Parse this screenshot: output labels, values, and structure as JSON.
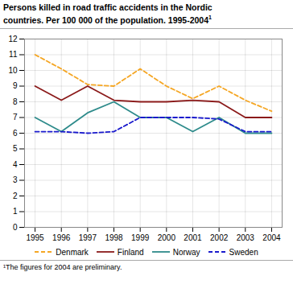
{
  "chart_data": {
    "type": "line",
    "title": "Persons killed in road traffic accidents in the Nordic\ncountries. Per 100 000 of the population.  1995-2004",
    "superscript": "1",
    "caption": "¹The figures for 2004 are preliminary.",
    "x": [
      1995,
      1996,
      1997,
      1998,
      1999,
      2000,
      2001,
      2002,
      2003,
      2004
    ],
    "series": [
      {
        "name": "Denmark",
        "color": "#F5A623",
        "line_style": "dashed",
        "values": [
          11.0,
          10.1,
          9.1,
          9.0,
          10.1,
          9.0,
          8.2,
          9.0,
          8.1,
          7.4
        ]
      },
      {
        "name": "Finland",
        "color": "#8B1A1A",
        "line_style": "solid",
        "values": [
          9.0,
          8.1,
          9.0,
          8.1,
          8.0,
          8.0,
          8.1,
          8.0,
          7.0,
          7.0
        ]
      },
      {
        "name": "Norway",
        "color": "#2E8B8B",
        "line_style": "solid",
        "values": [
          7.0,
          6.1,
          7.3,
          8.0,
          7.0,
          7.0,
          6.1,
          7.0,
          6.0,
          6.0
        ]
      },
      {
        "name": "Sweden",
        "color": "#1A1ACD",
        "line_style": "dashed",
        "values": [
          6.1,
          6.1,
          6.0,
          6.1,
          7.0,
          7.0,
          7.0,
          6.9,
          6.1,
          6.1
        ]
      }
    ],
    "xlim": [
      1994.6,
      2004.4
    ],
    "xticks": [
      1995,
      1996,
      1997,
      1998,
      1999,
      2000,
      2001,
      2002,
      2003,
      2004
    ],
    "ylim": [
      0,
      12
    ],
    "yticks": [
      0,
      1,
      2,
      3,
      4,
      5,
      6,
      7,
      8,
      9,
      10,
      11,
      12
    ],
    "grid": true,
    "legend": "bottom"
  }
}
